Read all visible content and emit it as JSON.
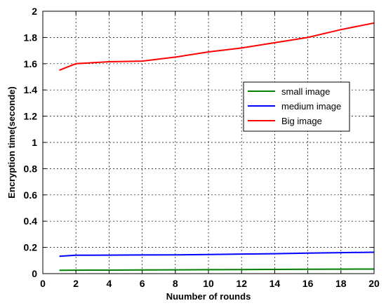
{
  "chart_data": {
    "type": "line",
    "xlabel": "Nuumber of rounds",
    "ylabel": "Encryption time(seconde)",
    "xlim": [
      0,
      20
    ],
    "ylim": [
      0,
      2
    ],
    "xticks": [
      0,
      2,
      4,
      6,
      8,
      10,
      12,
      14,
      16,
      18,
      20
    ],
    "yticks": [
      0,
      0.2,
      0.4,
      0.6,
      0.8,
      1,
      1.2,
      1.4,
      1.6,
      1.8,
      2
    ],
    "grid": true,
    "legend_position": "right",
    "series": [
      {
        "name": "small image",
        "color": "#008000",
        "x": [
          1,
          2,
          4,
          6,
          8,
          10,
          12,
          14,
          16,
          18,
          20
        ],
        "y": [
          0.025,
          0.026,
          0.027,
          0.028,
          0.029,
          0.03,
          0.031,
          0.032,
          0.033,
          0.034,
          0.035
        ]
      },
      {
        "name": "medium image",
        "color": "#0000ff",
        "x": [
          1,
          2,
          4,
          6,
          8,
          10,
          12,
          14,
          16,
          18,
          20
        ],
        "y": [
          0.132,
          0.14,
          0.141,
          0.142,
          0.143,
          0.146,
          0.149,
          0.152,
          0.156,
          0.16,
          0.163
        ]
      },
      {
        "name": "Big image",
        "color": "#ff0000",
        "x": [
          1,
          2,
          4,
          6,
          8,
          10,
          12,
          14,
          16,
          18,
          20
        ],
        "y": [
          1.55,
          1.6,
          1.615,
          1.62,
          1.65,
          1.69,
          1.72,
          1.76,
          1.8,
          1.86,
          1.91
        ]
      }
    ]
  }
}
